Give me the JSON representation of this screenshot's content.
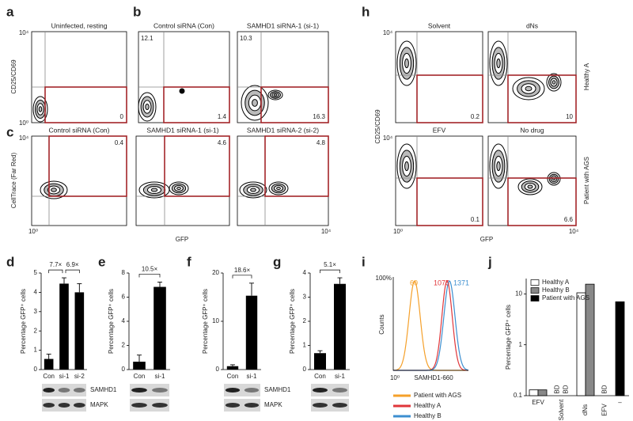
{
  "panel_labels": [
    "a",
    "b",
    "c",
    "d",
    "e",
    "f",
    "g",
    "h",
    "i",
    "j"
  ],
  "flow": {
    "y_label_top": "CD25/CD69",
    "y_label_c": "CellTrace (Far Red)",
    "x_label": "GFP",
    "tick_high": "10⁴",
    "tick_low": "10⁰",
    "plots": [
      {
        "title": "Uninfected, resting",
        "gate": 0
      },
      {
        "title": "Control siRNA (Con)",
        "corner": 12.1,
        "gate": 1.4
      },
      {
        "title": "SAMHD1 siRNA-1 (si-1)",
        "corner": 10.3,
        "gate": 16.3
      },
      {
        "title": "Control siRNA (Con)",
        "gate": 0.4
      },
      {
        "title": "SAMHD1 siRNA-1 (si-1)",
        "gate": 4.6
      },
      {
        "title": "SAMHD1 siRNA-2 (si-2)",
        "gate": 4.8
      },
      {
        "title": "Solvent",
        "gate": 0.2
      },
      {
        "title": "dNs",
        "gate": 10
      },
      {
        "title": "EFV",
        "gate": 0.1
      },
      {
        "title": "No drug",
        "gate": 6.6
      }
    ],
    "h_y_label": "CD25/CD69",
    "h_rows": [
      "Healthy A",
      "Patient with AGS"
    ]
  },
  "histogram": {
    "y_label": "Counts",
    "y_tick": "100%",
    "x_tick": "10⁰",
    "x_label": "SAMHD1-660",
    "peaks": [
      "60",
      "1075",
      "1371"
    ],
    "legend": [
      "Patient with AGS",
      "Healthy A",
      "Healthy B"
    ],
    "colors": [
      "#f5a02a",
      "#e0363a",
      "#3d8fd0"
    ]
  },
  "chart_data": [
    {
      "type": "bar",
      "y_label": "Percentage GFP⁺ cells",
      "categories": [
        "Con",
        "si-1",
        "si-2"
      ],
      "values": [
        0.55,
        4.45,
        4.0
      ],
      "errors": [
        0.25,
        0.3,
        0.45
      ],
      "ylim": [
        0,
        5
      ],
      "yticks": [
        0,
        1,
        2,
        3,
        4,
        5
      ],
      "color": "#000000",
      "annotations": [
        "7.7×",
        "6.9×"
      ],
      "blot_labels": [
        "SAMHD1",
        "MAPK"
      ]
    },
    {
      "type": "bar",
      "y_label": "Percentage GFP⁺ cells",
      "categories": [
        "Con",
        "si-1"
      ],
      "values": [
        0.65,
        6.85
      ],
      "errors": [
        0.55,
        0.4
      ],
      "ylim": [
        0,
        8
      ],
      "yticks": [
        0,
        2,
        4,
        6,
        8
      ],
      "color": "#000000",
      "annotations": [
        "10.5×"
      ]
    },
    {
      "type": "bar",
      "y_label": "Percentage GFP⁺ cells",
      "categories": [
        "Con",
        "si-1"
      ],
      "values": [
        0.7,
        15.3
      ],
      "errors": [
        0.3,
        2.6
      ],
      "ylim": [
        0,
        20
      ],
      "yticks": [
        0,
        10,
        20
      ],
      "color": "#000000",
      "annotations": [
        "18.6×"
      ],
      "blot_labels": [
        "SAMHD1",
        "MAPK"
      ]
    },
    {
      "type": "bar",
      "y_label": "Percentage GFP⁺ cells",
      "categories": [
        "Con",
        "si-1"
      ],
      "values": [
        0.68,
        3.55
      ],
      "errors": [
        0.1,
        0.25
      ],
      "ylim": [
        0,
        4
      ],
      "yticks": [
        0,
        1,
        2,
        3,
        4
      ],
      "color": "#000000",
      "annotations": [
        "5.1×"
      ]
    },
    {
      "type": "groupbar",
      "y_label": "Percentage GFP⁺ cells",
      "log_scale": true,
      "categories": [
        "EFV",
        "Solvent",
        "dNs",
        "EFV",
        "–"
      ],
      "ylim": [
        0.1,
        20
      ],
      "yticks": [
        0.1,
        1,
        10
      ],
      "series": [
        {
          "name": "Healthy A",
          "color": "#ffffff",
          "values": [
            0.13,
            null,
            10.5,
            null,
            null
          ],
          "value_labels": [
            null,
            "BD",
            null,
            null,
            null
          ]
        },
        {
          "name": "Healthy B",
          "color": "#888888",
          "values": [
            0.13,
            null,
            15.5,
            null,
            null
          ],
          "value_labels": [
            null,
            "BD",
            null,
            null,
            null
          ]
        },
        {
          "name": "Patient with AGS",
          "color": "#000000",
          "values": [
            null,
            null,
            null,
            null,
            7.0
          ],
          "value_labels": [
            null,
            null,
            null,
            "BD",
            null
          ]
        }
      ]
    }
  ]
}
